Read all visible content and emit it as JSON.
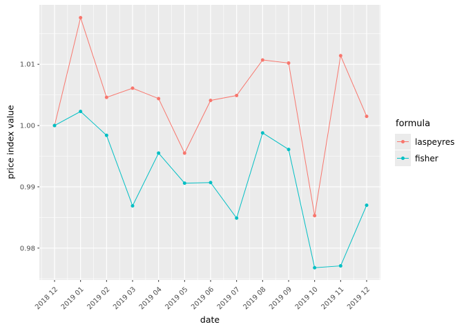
{
  "chart_data": {
    "type": "line",
    "title": "",
    "xlabel": "date",
    "ylabel": "price index value",
    "categories": [
      "2018 12",
      "2019 01",
      "2019 02",
      "2019 03",
      "2019 04",
      "2019 05",
      "2019 06",
      "2019 07",
      "2019 08",
      "2019 09",
      "2019 10",
      "2019 11",
      "2019 12"
    ],
    "series": [
      {
        "name": "laspeyres",
        "color": "#F8766D",
        "values": [
          1.0,
          1.0176,
          1.0046,
          1.0061,
          1.0044,
          0.9955,
          1.0041,
          1.0049,
          1.0107,
          1.0102,
          0.9853,
          1.0114,
          1.0015
        ]
      },
      {
        "name": "fisher",
        "color": "#00BFC4",
        "values": [
          1.0,
          1.0023,
          0.9984,
          0.9869,
          0.9955,
          0.9906,
          0.9907,
          0.9849,
          0.9988,
          0.9961,
          0.9768,
          0.9771,
          0.987
        ]
      }
    ],
    "legend": {
      "title": "formula",
      "position": "right"
    },
    "y_ticks": {
      "values": [
        0.98,
        0.99,
        1.0,
        1.01
      ],
      "labels": [
        "0.98",
        "0.99",
        "1.00",
        "1.01"
      ]
    },
    "y_minor": [
      0.975,
      0.985,
      0.995,
      1.005,
      1.015
    ],
    "ylim": [
      0.9748,
      1.0197
    ],
    "grid": "major-and-minor-on",
    "colors": {
      "panel_bg": "#EBEBEB",
      "grid": "#FFFFFF",
      "axis_text": "#4D4D4D",
      "tick_marks": "#333333",
      "axis_title": "#000000"
    }
  }
}
